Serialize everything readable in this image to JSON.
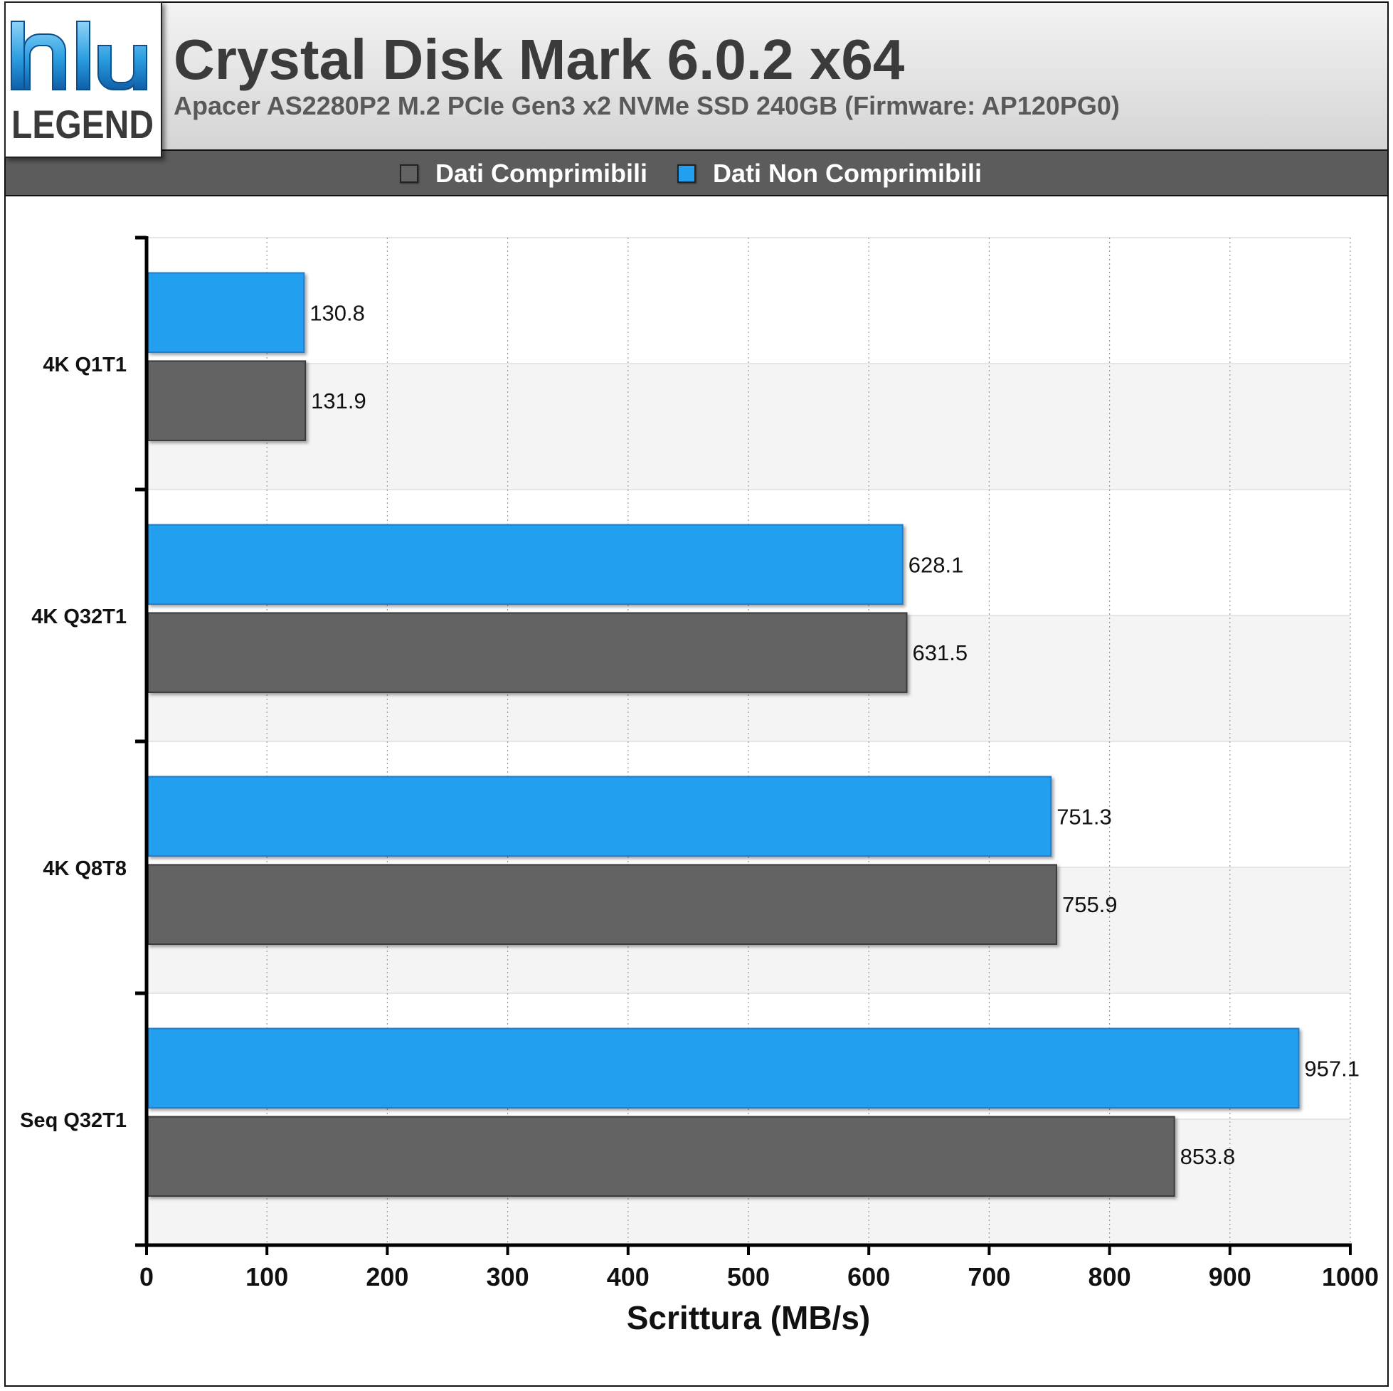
{
  "header": {
    "title": "Crystal Disk Mark 6.0.2 x64",
    "subtitle": "Apacer AS2280P2 M.2 PCIe Gen3 x2 NVMe SSD 240GB (Firmware: AP120PG0)",
    "logo_text": "LEGEND"
  },
  "legend": {
    "items": [
      {
        "label": "Dati Comprimibili",
        "color": "#636363"
      },
      {
        "label": "Dati Non Comprimibili",
        "color": "#239fef"
      }
    ]
  },
  "chart_data": {
    "type": "bar",
    "orientation": "horizontal",
    "categories": [
      "4K Q1T1",
      "4K Q32T1",
      "4K Q8T8",
      "Seq Q32T1"
    ],
    "series": [
      {
        "name": "Dati Non Comprimibili",
        "color": "#239fef",
        "values": [
          130.8,
          628.1,
          751.3,
          957.1
        ]
      },
      {
        "name": "Dati Comprimibili",
        "color": "#636363",
        "values": [
          131.9,
          631.5,
          755.9,
          853.8
        ]
      }
    ],
    "value_labels": {
      "Dati Non Comprimibili": [
        "130.8",
        "628.1",
        "751.3",
        "957.1"
      ],
      "Dati Comprimibili": [
        "131.9",
        "631.5",
        "755.9",
        "853.8"
      ]
    },
    "xlabel": "Scrittura (MB/s)",
    "xlim": [
      0,
      1000
    ],
    "xticks": [
      0,
      100,
      200,
      300,
      400,
      500,
      600,
      700,
      800,
      900,
      1000
    ],
    "xtick_labels": [
      "0",
      "100",
      "200",
      "300",
      "400",
      "500",
      "600",
      "700",
      "800",
      "900",
      "1000"
    ],
    "grid": true,
    "legend_position": "top"
  }
}
